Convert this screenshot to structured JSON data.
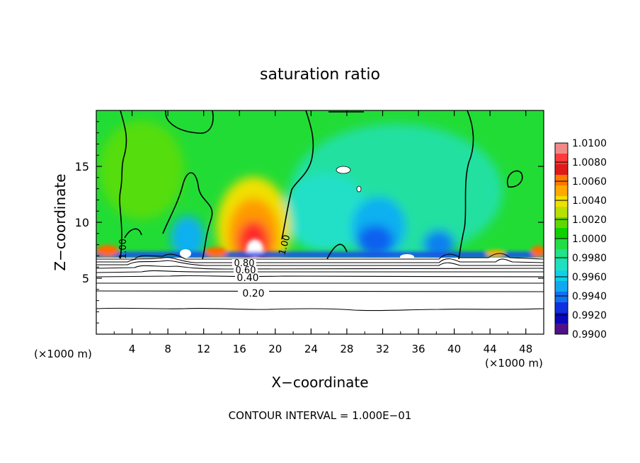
{
  "chart_data": {
    "type": "heatmap",
    "title": "saturation ratio",
    "xlabel": "X−coordinate",
    "ylabel": "Z−coordinate",
    "x_unit_left": "(×1000 m)",
    "x_unit_right": "(×1000 m)",
    "xlim": [
      0,
      50
    ],
    "ylim": [
      0,
      20
    ],
    "x_ticks": [
      4,
      8,
      12,
      16,
      20,
      24,
      28,
      32,
      36,
      40,
      44,
      48
    ],
    "y_ticks": [
      5,
      10,
      15
    ],
    "grid": false,
    "footer": "CONTOUR INTERVAL = 1.000E−01",
    "colorbar": {
      "labels": [
        "1.0100",
        "1.0080",
        "1.0060",
        "1.0040",
        "1.0020",
        "1.0000",
        "0.9980",
        "0.9960",
        "0.9940",
        "0.9920",
        "0.9900"
      ],
      "colors": [
        "#f08a8a",
        "#ff3a3a",
        "#e01a1a",
        "#ff7a00",
        "#ffaa00",
        "#f0e000",
        "#b8e000",
        "#60d800",
        "#10d000",
        "#22dd44",
        "#22e28a",
        "#20e0c0",
        "#10d0e8",
        "#10a8f0",
        "#1070f0",
        "#1030e0",
        "#0808b8",
        "#50108a"
      ]
    },
    "contour_labels": [
      "0.80",
      "0.60",
      "0.40",
      "0.20",
      "1.00",
      "1.00"
    ]
  }
}
